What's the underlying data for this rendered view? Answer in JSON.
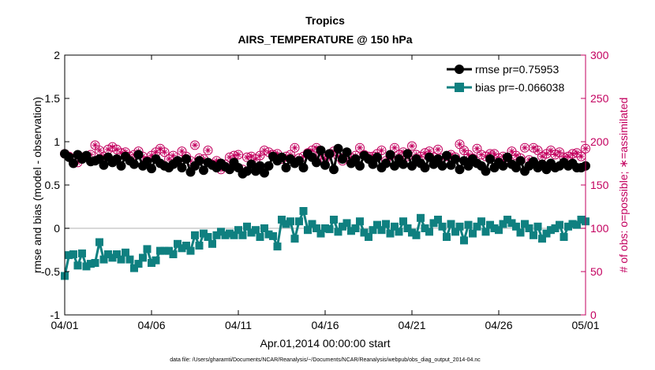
{
  "colors": {
    "rmse": "#000000",
    "bias": "#0f8080",
    "obs": "#c3005f",
    "zero_line": "#cccccc",
    "axis": "#000000"
  },
  "chart_data": {
    "type": "line",
    "title": "Tropics",
    "subtitle": "AIRS_TEMPERATURE @ 150 hPa",
    "xlabel": "Apr.01,2014 00:00:00 start",
    "ylabel": "rmse and bias (model - observation)",
    "y2label": "# of obs: o=possible; ∗=assimilated",
    "xlim": [
      0,
      30
    ],
    "ylim": [
      -1,
      2
    ],
    "y2lim": [
      0,
      300
    ],
    "xticks": [
      0,
      5,
      10,
      15,
      20,
      25,
      30
    ],
    "xticklabels": [
      "04/01",
      "04/06",
      "04/11",
      "04/16",
      "04/21",
      "04/26",
      "05/01"
    ],
    "yticks": [
      -1,
      -0.5,
      0,
      0.5,
      1,
      1.5,
      2
    ],
    "yticklabels": [
      "-1",
      "-0.5",
      "0",
      "0.5",
      "1",
      "1.5",
      "2"
    ],
    "y2ticks": [
      0,
      50,
      100,
      150,
      200,
      250,
      300
    ],
    "y2ticklabels": [
      "0",
      "50",
      "100",
      "150",
      "200",
      "250",
      "300"
    ],
    "legend_position": "top-right",
    "legend": [
      "rmse pr=0.75953",
      "bias pr=-0.066038"
    ],
    "footnote": "data file: /Users/gharamti/Documents/NCAR/Reanalysis/~/Documents/NCAR/Reanalysis/webpub/obs_diag_output_2014-04.nc",
    "x": [
      0.0,
      0.25,
      0.5,
      0.75,
      1.0,
      1.25,
      1.5,
      1.75,
      2.0,
      2.25,
      2.5,
      2.75,
      3.0,
      3.25,
      3.5,
      3.75,
      4.0,
      4.25,
      4.5,
      4.75,
      5.0,
      5.25,
      5.5,
      5.75,
      6.0,
      6.25,
      6.5,
      6.75,
      7.0,
      7.25,
      7.5,
      7.75,
      8.0,
      8.25,
      8.5,
      8.75,
      9.0,
      9.25,
      9.5,
      9.75,
      10.0,
      10.25,
      10.5,
      10.75,
      11.0,
      11.25,
      11.5,
      11.75,
      12.0,
      12.25,
      12.5,
      12.75,
      13.0,
      13.25,
      13.5,
      13.75,
      14.0,
      14.25,
      14.5,
      14.75,
      15.0,
      15.25,
      15.5,
      15.75,
      16.0,
      16.25,
      16.5,
      16.75,
      17.0,
      17.25,
      17.5,
      17.75,
      18.0,
      18.25,
      18.5,
      18.75,
      19.0,
      19.25,
      19.5,
      19.75,
      20.0,
      20.25,
      20.5,
      20.75,
      21.0,
      21.25,
      21.5,
      21.75,
      22.0,
      22.25,
      22.5,
      22.75,
      23.0,
      23.25,
      23.5,
      23.75,
      24.0,
      24.25,
      24.5,
      24.75,
      25.0,
      25.25,
      25.5,
      25.75,
      26.0,
      26.25,
      26.5,
      26.75,
      27.0,
      27.25,
      27.5,
      27.75,
      28.0,
      28.25,
      28.5,
      28.75,
      29.0,
      29.25,
      29.5,
      29.75,
      30.0
    ],
    "series": [
      {
        "name": "rmse pr=0.75953",
        "marker": "circle",
        "values": [
          0.86,
          0.82,
          0.75,
          0.85,
          0.8,
          0.84,
          0.77,
          0.78,
          0.8,
          0.73,
          0.82,
          0.76,
          0.8,
          0.72,
          0.83,
          0.78,
          0.74,
          0.85,
          0.72,
          0.77,
          0.69,
          0.8,
          0.75,
          0.72,
          0.7,
          0.74,
          0.78,
          0.7,
          0.8,
          0.65,
          0.72,
          0.78,
          0.67,
          0.76,
          0.73,
          0.7,
          0.75,
          0.71,
          0.68,
          0.76,
          0.7,
          0.63,
          0.66,
          0.74,
          0.66,
          0.72,
          0.64,
          0.72,
          0.83,
          0.78,
          0.82,
          0.7,
          0.8,
          0.75,
          0.78,
          0.7,
          0.86,
          0.82,
          0.76,
          0.9,
          0.73,
          0.86,
          0.68,
          0.92,
          0.8,
          0.88,
          0.75,
          0.8,
          0.72,
          0.84,
          0.8,
          0.74,
          0.82,
          0.7,
          0.75,
          0.85,
          0.72,
          0.8,
          0.74,
          0.86,
          0.72,
          0.8,
          0.75,
          0.7,
          0.82,
          0.74,
          0.8,
          0.72,
          0.84,
          0.73,
          0.8,
          0.68,
          0.78,
          0.72,
          0.8,
          0.75,
          0.72,
          0.66,
          0.8,
          0.7,
          0.76,
          0.72,
          0.82,
          0.74,
          0.7,
          0.78,
          0.66,
          0.72,
          0.77,
          0.7,
          0.74,
          0.68,
          0.75,
          0.7,
          0.72,
          0.76,
          0.72,
          0.75,
          0.7,
          0.7,
          0.72
        ]
      },
      {
        "name": "bias pr=-0.066038",
        "marker": "square",
        "values": [
          -0.55,
          -0.31,
          -0.3,
          -0.43,
          -0.29,
          -0.44,
          -0.41,
          -0.4,
          -0.16,
          -0.36,
          -0.3,
          -0.34,
          -0.3,
          -0.36,
          -0.28,
          -0.36,
          -0.46,
          -0.41,
          -0.34,
          -0.24,
          -0.4,
          -0.37,
          -0.26,
          -0.26,
          -0.26,
          -0.3,
          -0.18,
          -0.23,
          -0.2,
          -0.26,
          -0.08,
          -0.2,
          -0.06,
          -0.1,
          -0.18,
          -0.08,
          -0.04,
          -0.08,
          -0.06,
          -0.08,
          -0.02,
          -0.08,
          0.02,
          -0.05,
          -0.02,
          -0.1,
          0.0,
          -0.07,
          -0.09,
          -0.21,
          0.1,
          0.05,
          0.08,
          -0.12,
          0.08,
          0.2,
          -0.02,
          0.05,
          0.0,
          -0.06,
          0.0,
          -0.01,
          0.1,
          -0.04,
          0.02,
          0.06,
          -0.03,
          0.0,
          0.08,
          -0.05,
          -0.1,
          -0.02,
          0.04,
          -0.02,
          0.05,
          -0.06,
          0.02,
          -0.04,
          0.08,
          0.0,
          -0.05,
          -0.08,
          0.12,
          0.0,
          -0.04,
          0.06,
          0.1,
          0.02,
          -0.1,
          0.05,
          -0.04,
          0.02,
          -0.14,
          0.04,
          -0.06,
          0.02,
          0.08,
          -0.04,
          0.04,
          0.0,
          -0.02,
          0.05,
          0.1,
          0.06,
          0.02,
          -0.05,
          0.05,
          0.0,
          -0.08,
          0.02,
          -0.12,
          -0.06,
          -0.02,
          0.0,
          0.04,
          -0.1,
          0.02,
          0.05,
          0.04,
          0.1,
          0.08
        ]
      },
      {
        "name": "obs_possible",
        "axis": "right",
        "marker": "circle-open",
        "values": [
          186,
          183,
          178,
          176,
          182,
          183,
          185,
          196,
          190,
          183,
          191,
          194,
          191,
          187,
          188,
          183,
          185,
          189,
          183,
          178,
          184,
          188,
          192,
          188,
          180,
          184,
          178,
          189,
          183,
          178,
          196,
          181,
          180,
          190,
          174,
          178,
          168,
          174,
          182,
          184,
          185,
          168,
          182,
          183,
          180,
          184,
          190,
          188,
          185,
          186,
          180,
          183,
          185,
          193,
          181,
          183,
          187,
          190,
          193,
          185,
          180,
          186,
          189,
          183,
          178,
          185,
          181,
          184,
          193,
          185,
          183,
          183,
          186,
          190,
          178,
          184,
          193,
          185,
          188,
          183,
          195,
          185,
          183,
          187,
          189,
          182,
          191,
          181,
          183,
          185,
          182,
          197,
          190,
          185,
          181,
          192,
          185,
          183,
          186,
          186,
          181,
          183,
          180,
          189,
          184,
          181,
          193,
          179,
          193,
          190,
          183,
          186,
          190,
          185,
          188,
          182,
          183,
          186,
          187,
          183,
          192
        ]
      },
      {
        "name": "obs_assimilated",
        "axis": "right",
        "marker": "star",
        "values": [
          186,
          183,
          178,
          176,
          182,
          183,
          185,
          196,
          190,
          183,
          191,
          194,
          191,
          187,
          188,
          183,
          185,
          189,
          183,
          178,
          184,
          188,
          192,
          188,
          180,
          184,
          178,
          189,
          183,
          178,
          196,
          181,
          180,
          190,
          174,
          178,
          168,
          174,
          182,
          184,
          185,
          168,
          182,
          183,
          180,
          184,
          190,
          188,
          185,
          186,
          180,
          183,
          185,
          193,
          181,
          183,
          187,
          190,
          193,
          185,
          180,
          186,
          189,
          183,
          178,
          185,
          181,
          184,
          193,
          185,
          183,
          183,
          186,
          190,
          178,
          184,
          193,
          185,
          188,
          183,
          195,
          185,
          183,
          187,
          189,
          182,
          191,
          181,
          183,
          185,
          182,
          197,
          190,
          185,
          181,
          192,
          185,
          183,
          186,
          186,
          181,
          183,
          180,
          189,
          184,
          181,
          193,
          179,
          193,
          190,
          183,
          186,
          190,
          185,
          188,
          182,
          183,
          186,
          187,
          183,
          192
        ]
      }
    ]
  }
}
